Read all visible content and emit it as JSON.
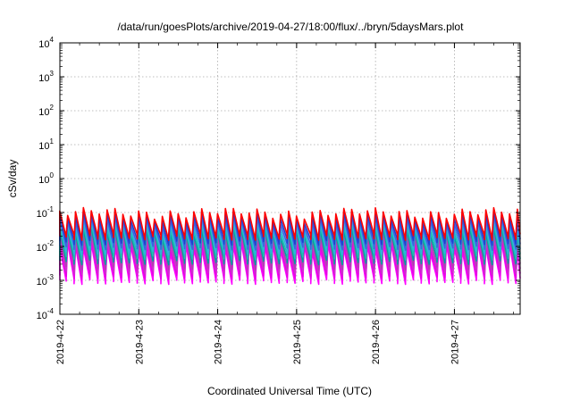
{
  "chart_data": {
    "type": "line",
    "title": "/data/run/goesPlots/archive/2019-04-27/18:00/flux/../bryn/5daysMars.plot",
    "xlabel": "Coordinated Universal Time (UTC)",
    "ylabel": "cSv/day",
    "yscale": "log",
    "ylim": [
      0.0001,
      10000
    ],
    "ytick_labels": [
      {
        "base": "10",
        "exp": "-4"
      },
      {
        "base": "10",
        "exp": "-3"
      },
      {
        "base": "10",
        "exp": "-2"
      },
      {
        "base": "10",
        "exp": "-1"
      },
      {
        "base": "10",
        "exp": "0"
      },
      {
        "base": "10",
        "exp": "1"
      },
      {
        "base": "10",
        "exp": "2"
      },
      {
        "base": "10",
        "exp": "3"
      },
      {
        "base": "10",
        "exp": "4"
      }
    ],
    "xlim": [
      "2019-04-22 00:00",
      "2019-04-27 20:00"
    ],
    "xtick_labels": [
      "2019-4-22",
      "2019-4-23",
      "2019-4-24",
      "2019-4-25",
      "2019-4-26",
      "2019-4-27"
    ],
    "grid": true,
    "pattern": {
      "description": "sawtooth, one cycle about every 2.4 hours",
      "top_series_peak": 0.1,
      "top_series_trough": 0.02,
      "bottom_series_peak": 0.01,
      "bottom_series_trough": 0.001
    },
    "series_colors": [
      "#ff00ff",
      "#e600e6",
      "#cc33cc",
      "#b040b0",
      "#00a0a0",
      "#20c0b0",
      "#30b0e0",
      "#4060e0",
      "#2040d0",
      "#ff0000"
    ]
  }
}
